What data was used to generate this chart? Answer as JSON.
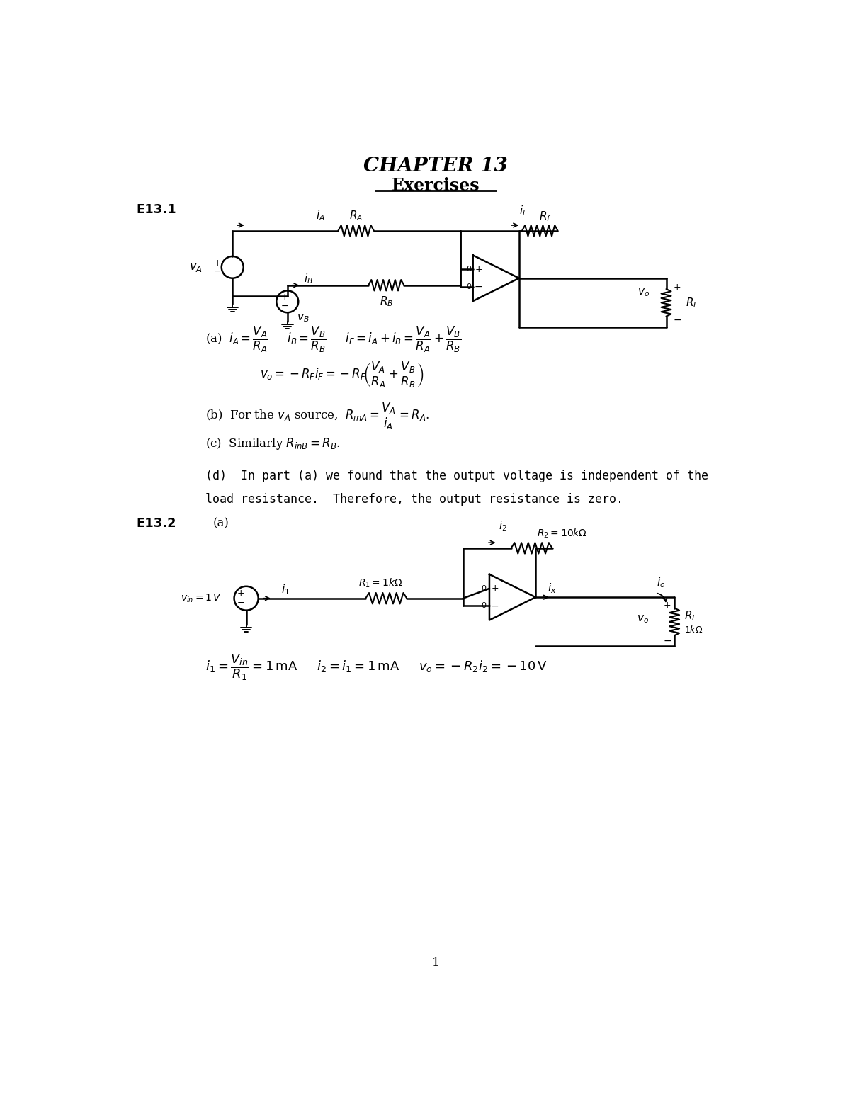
{
  "title": "CHAPTER 13",
  "subtitle": "Exercises",
  "e131_label": "E13.1",
  "e132_label": "E13.2",
  "e132_sub": "(a)",
  "part_d_line1": "(d)  In part (a) we found that the output voltage is independent of the",
  "part_d_line2": "load resistance.  Therefore, the output resistance is zero.",
  "bg_color": "#ffffff",
  "text_color": "#000000",
  "page_number": "1"
}
